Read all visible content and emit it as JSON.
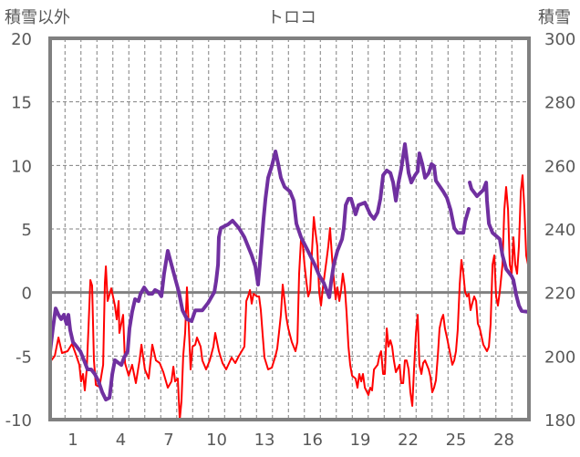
{
  "chart_data": {
    "type": "line",
    "title": "トロコ",
    "ylabel": "積雪以外",
    "y2label": "積雪",
    "xlim": [
      -0.43,
      29.57
    ],
    "ylim": [
      -10,
      20
    ],
    "y2lim": [
      180,
      300
    ],
    "yticks": [
      "-10",
      "-5",
      "0",
      "5",
      "10",
      "15",
      "20"
    ],
    "y2ticks": [
      "180",
      "200",
      "220",
      "240",
      "260",
      "280",
      "300"
    ],
    "xticks": [
      "1",
      "4",
      "7",
      "10",
      "13",
      "16",
      "19",
      "22",
      "25",
      "28"
    ],
    "grid": true,
    "colors": {
      "other": "#FF0000",
      "snow": "#7030A0",
      "frame": "#808080"
    },
    "series": [
      {
        "name": "積雪以外",
        "axis": "left",
        "x": [
          -0.49,
          -0.14,
          0.09,
          0.31,
          0.66,
          0.94,
          1.17,
          1.4,
          1.51,
          1.63,
          1.74,
          1.86,
          1.97,
          2.09,
          2.2,
          2.31,
          2.43,
          2.66,
          2.89,
          3.0,
          3.06,
          3.17,
          3.4,
          3.63,
          3.74,
          3.86,
          3.91,
          4.14,
          4.26,
          4.49,
          4.71,
          4.94,
          5.17,
          5.29,
          5.51,
          5.74,
          5.97,
          6.2,
          6.43,
          6.66,
          6.94,
          7.17,
          7.29,
          7.4,
          7.57,
          7.69,
          7.8,
          7.91,
          8.03,
          8.14,
          8.26,
          8.37,
          8.49,
          8.66,
          8.77,
          9.0,
          9.11,
          9.34,
          9.57,
          9.8,
          9.91,
          10.14,
          10.37,
          10.6,
          10.94,
          11.17,
          11.4,
          11.74,
          11.86,
          11.97,
          12.09,
          12.2,
          12.31,
          12.54,
          12.66,
          12.77,
          12.89,
          13.0,
          13.23,
          13.46,
          13.69,
          13.8,
          13.91,
          14.03,
          14.14,
          14.26,
          14.37,
          14.49,
          14.71,
          14.94,
          15.06,
          15.17,
          15.29,
          15.4,
          15.51,
          15.63,
          15.74,
          15.86,
          15.97,
          16.09,
          16.2,
          16.31,
          16.43,
          16.54,
          16.66,
          16.89,
          17.0,
          17.11,
          17.23,
          17.34,
          17.46,
          17.57,
          17.69,
          17.8,
          17.91,
          18.03,
          18.14,
          18.26,
          18.37,
          18.49,
          18.71,
          18.83,
          18.94,
          19.06,
          19.17,
          19.29,
          19.51,
          19.63,
          19.74,
          19.86,
          20.09,
          20.2,
          20.31,
          20.43,
          20.54,
          20.66,
          20.77,
          20.89,
          21.0,
          21.11,
          21.23,
          21.46,
          21.57,
          21.69,
          21.8,
          21.91,
          22.03,
          22.14,
          22.26,
          22.37,
          22.49,
          22.6,
          22.71,
          22.83,
          22.94,
          23.06,
          23.29,
          23.4,
          23.51,
          23.63,
          23.74,
          23.86,
          23.97,
          24.09,
          24.2,
          24.31,
          24.43,
          24.66,
          24.77,
          24.89,
          25.0,
          25.11,
          25.23,
          25.34,
          25.46,
          25.57,
          25.69,
          25.8,
          25.91,
          26.03,
          26.14,
          26.26,
          26.37,
          26.49,
          26.71,
          26.94,
          27.06,
          27.17,
          27.29,
          27.4,
          27.51,
          27.63,
          27.74,
          27.91,
          28.03,
          28.14,
          28.26,
          28.37,
          28.49,
          28.6,
          28.71,
          28.83,
          28.94,
          29.06,
          29.17,
          29.29,
          29.4,
          29.51,
          29.57
        ],
        "values": [
          -5.55,
          -4.98,
          -3.54,
          -4.76,
          -4.62,
          -4.04,
          -4.83,
          -5.69,
          -6.99,
          -6.41,
          -7.7,
          -6.05,
          -2.82,
          0.98,
          0.55,
          -5.34,
          -7.27,
          -7.42,
          -5.69,
          0.77,
          2.06,
          -0.67,
          0.33,
          -1.03,
          -2.11,
          -0.67,
          -3.18,
          -1.75,
          -5.55,
          -6.55,
          -5.69,
          -7.13,
          -5.34,
          -4.11,
          -6.05,
          -6.77,
          -4.11,
          -5.34,
          -5.55,
          -6.27,
          -7.49,
          -6.99,
          -5.84,
          -6.99,
          -6.77,
          -10.0,
          -8.56,
          -4.98,
          -3.18,
          0.41,
          -2.82,
          -6.05,
          -4.26,
          -4.11,
          -3.54,
          -4.26,
          -5.34,
          -6.05,
          -5.34,
          -4.26,
          -3.18,
          -4.62,
          -5.55,
          -6.05,
          -5.12,
          -5.55,
          -4.98,
          -4.26,
          -0.67,
          -0.31,
          0.19,
          -0.88,
          -0.1,
          -0.31,
          -0.31,
          -1.39,
          -3.4,
          -5.12,
          -6.05,
          -5.91,
          -4.98,
          -4.4,
          -3.18,
          -1.75,
          0.62,
          -0.67,
          -1.96,
          -2.82,
          -3.9,
          -4.62,
          -3.9,
          1.48,
          4.21,
          3.78,
          2.2,
          0.77,
          -0.31,
          0.19,
          3.06,
          5.93,
          4.71,
          3.64,
          0.05,
          -1.03,
          0.41,
          2.56,
          3.64,
          5.07,
          2.78,
          1.12,
          -0.53,
          0.41,
          -0.67,
          0.19,
          1.48,
          0.41,
          -1.53,
          -4.26,
          -5.69,
          -6.55,
          -6.77,
          -7.49,
          -6.41,
          -6.99,
          -6.41,
          -7.49,
          -8.06,
          -7.49,
          -7.7,
          -6.05,
          -5.69,
          -4.98,
          -4.62,
          -6.41,
          -6.41,
          -2.82,
          -4.26,
          -3.76,
          -4.26,
          -5.34,
          -6.27,
          -5.69,
          -7.13,
          -7.13,
          -5.34,
          -5.34,
          -6.05,
          -7.85,
          -8.92,
          -6.05,
          -3.18,
          -1.75,
          -5.69,
          -6.41,
          -5.55,
          -5.34,
          -6.05,
          -6.63,
          -7.85,
          -7.49,
          -6.91,
          -4.98,
          -2.82,
          -2.11,
          -1.75,
          -2.82,
          -3.54,
          -4.98,
          -5.69,
          -5.34,
          -4.62,
          -2.97,
          0.62,
          2.56,
          1.48,
          0.05,
          -0.31,
          -0.1,
          -1.39,
          -0.81,
          -0.31,
          -0.67,
          -2.46,
          -2.82,
          -4.11,
          -4.62,
          -4.26,
          -2.46,
          2.2,
          2.92,
          -0.31,
          -1.03,
          0.05,
          2.2,
          6.51,
          8.3,
          6.51,
          2.2,
          1.48,
          4.35,
          2.2,
          1.48,
          3.64,
          7.94,
          9.23,
          6.51,
          2.92,
          2.2,
          1.58
        ]
      },
      {
        "name": "積雪",
        "axis": "right",
        "x": [
          -0.43,
          -0.26,
          -0.09,
          0.09,
          0.26,
          0.43,
          0.6,
          0.71,
          0.83,
          1.0,
          1.23,
          1.46,
          1.69,
          1.91,
          2.14,
          2.37,
          2.6,
          2.83,
          3.06,
          3.29,
          3.46,
          3.63,
          3.86,
          4.03,
          4.2,
          4.43,
          4.54,
          4.71,
          4.89,
          5.11,
          5.23,
          5.46,
          5.74,
          5.97,
          6.14,
          6.37,
          6.54,
          6.71,
          6.94,
          7.17,
          7.4,
          7.63,
          7.86,
          8.14,
          8.43,
          8.66,
          9.11,
          9.46,
          9.86,
          9.97,
          10.09,
          10.14,
          10.26,
          10.71,
          11.0,
          11.4,
          11.74,
          12.2,
          12.43,
          12.6,
          12.71,
          12.94,
          13.06,
          13.23,
          13.46,
          13.69,
          13.86,
          14.03,
          14.26,
          14.6,
          14.83,
          15.0,
          15.29,
          15.63,
          16.14,
          16.43,
          16.71,
          17.06,
          17.17,
          17.34,
          17.57,
          17.86,
          17.97,
          18.09,
          18.26,
          18.43,
          18.71,
          18.89,
          19.29,
          19.63,
          19.86,
          20.09,
          20.26,
          20.43,
          20.66,
          20.89,
          21.06,
          21.23,
          21.4,
          21.57,
          21.8,
          22.03,
          22.2,
          22.43,
          22.6,
          22.71,
          22.89,
          23.06,
          23.29,
          23.46,
          23.63,
          23.74,
          24.2,
          24.43,
          24.66,
          24.89,
          25.11,
          25.46,
          25.57,
          25.8,
          25.83,
          25.86,
          25.97,
          26.31,
          26.71,
          26.89,
          26.94,
          27.06,
          27.29,
          27.74,
          27.91,
          28.14,
          28.49,
          28.6,
          28.77,
          28.94,
          29.11,
          29.51
        ],
        "values": [
          201.5,
          208.7,
          215.0,
          213.0,
          211.6,
          213.0,
          210.1,
          213.0,
          208.1,
          204.4,
          203.0,
          201.5,
          198.7,
          195.8,
          195.8,
          194.3,
          192.1,
          188.6,
          186.3,
          186.9,
          194.3,
          198.7,
          197.8,
          197.2,
          199.5,
          201.5,
          208.7,
          213.9,
          217.9,
          217.3,
          219.6,
          221.6,
          219.6,
          219.6,
          220.8,
          220.2,
          218.8,
          225.9,
          233.1,
          228.8,
          224.5,
          220.2,
          214.4,
          211.6,
          211.0,
          214.4,
          214.4,
          216.7,
          220.2,
          223.6,
          228.8,
          237.4,
          240.3,
          241.4,
          242.6,
          240.3,
          237.4,
          231.7,
          228.2,
          222.5,
          228.8,
          243.2,
          249.5,
          256.1,
          259.8,
          264.4,
          260.4,
          256.1,
          253.2,
          251.8,
          248.9,
          241.7,
          237.4,
          234.0,
          228.8,
          225.4,
          223.1,
          218.5,
          223.1,
          228.8,
          233.1,
          236.8,
          240.3,
          247.5,
          249.5,
          249.5,
          244.6,
          247.5,
          248.3,
          244.6,
          243.2,
          245.2,
          249.5,
          256.9,
          258.4,
          257.6,
          254.6,
          248.9,
          254.6,
          258.9,
          266.7,
          257.6,
          254.6,
          256.9,
          258.1,
          263.8,
          260.4,
          256.1,
          257.6,
          260.4,
          259.8,
          255.2,
          251.8,
          249.8,
          246.0,
          240.3,
          238.8,
          238.8,
          242.3,
          246.3,
          null,
          254.6,
          252.6,
          250.3,
          252.3,
          254.6,
          248.9,
          241.7,
          238.8,
          236.8,
          231.7,
          227.4,
          225.1,
          223.9,
          219.3,
          215.9,
          214.2,
          213.9
        ]
      }
    ]
  }
}
